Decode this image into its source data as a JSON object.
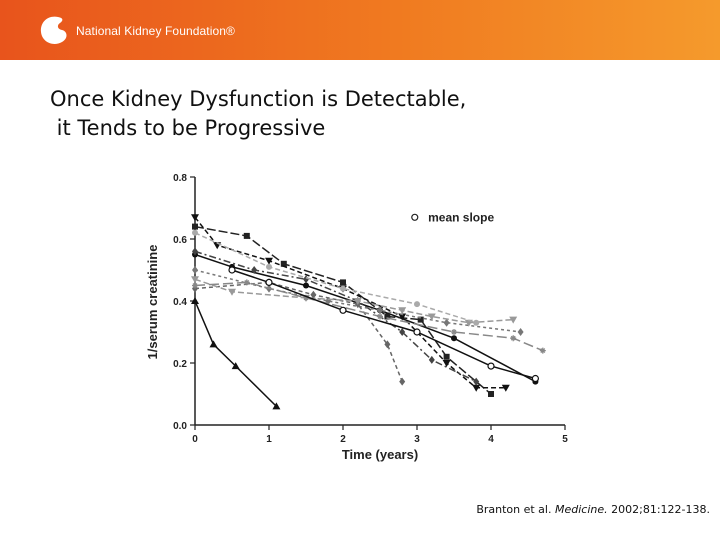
{
  "banner": {
    "color": "#f07a20",
    "logo_icon": "kidney-logo-icon",
    "logo_text": "National Kidney Foundation®"
  },
  "slide": {
    "title_line1": "Once Kidney Dysfunction is Detectable,",
    "title_line2": " it Tends to be Progressive"
  },
  "citation": {
    "authors": "Branton et al.",
    "journal": "Medicine.",
    "details": "2002;81:122-138."
  },
  "chart_data": {
    "type": "line",
    "title": "",
    "xlabel": "Time (years)",
    "ylabel": "1/serum creatinine",
    "xlim": [
      0,
      5
    ],
    "ylim": [
      0.0,
      0.8
    ],
    "xticks": [
      "0",
      "1",
      "2",
      "3",
      "4",
      "5"
    ],
    "yticks": [
      "0.0",
      "0.2",
      "0.4",
      "0.6",
      "0.8"
    ],
    "grid": false,
    "legend_position": "top-right",
    "legend": [
      {
        "marker": "open-circle",
        "label": "mean slope"
      }
    ],
    "series": [
      {
        "color": "#111111",
        "dash": "",
        "marker": "triangle",
        "points": [
          [
            0,
            0.4
          ],
          [
            0.25,
            0.26
          ],
          [
            0.55,
            0.19
          ],
          [
            1.1,
            0.06
          ]
        ]
      },
      {
        "color": "#111111",
        "dash": "",
        "marker": "circle",
        "points": [
          [
            0,
            0.55
          ],
          [
            0.5,
            0.51
          ],
          [
            1.5,
            0.45
          ],
          [
            2.5,
            0.37
          ],
          [
            3.5,
            0.28
          ],
          [
            4.6,
            0.14
          ]
        ]
      },
      {
        "color": "#222222",
        "dash": "9,3",
        "marker": "square",
        "points": [
          [
            0,
            0.64
          ],
          [
            0.7,
            0.61
          ],
          [
            1.2,
            0.52
          ],
          [
            2.0,
            0.46
          ],
          [
            2.6,
            0.35
          ],
          [
            3.05,
            0.34
          ],
          [
            3.4,
            0.22
          ],
          [
            4.0,
            0.1
          ]
        ]
      },
      {
        "color": "#111111",
        "dash": "5,3",
        "marker": "triangle-down",
        "points": [
          [
            0,
            0.67
          ],
          [
            0.3,
            0.58
          ],
          [
            1.0,
            0.53
          ],
          [
            2.0,
            0.44
          ],
          [
            2.8,
            0.35
          ],
          [
            3.4,
            0.2
          ],
          [
            3.8,
            0.12
          ],
          [
            4.2,
            0.12
          ]
        ]
      },
      {
        "color": "#444444",
        "dash": "7,3,2,3",
        "marker": "diamond",
        "points": [
          [
            0,
            0.56
          ],
          [
            0.8,
            0.5
          ],
          [
            1.5,
            0.47
          ],
          [
            2.2,
            0.4
          ],
          [
            2.8,
            0.3
          ],
          [
            3.2,
            0.21
          ],
          [
            3.8,
            0.14
          ]
        ]
      },
      {
        "color": "#777777",
        "dash": "3,3",
        "marker": "diamond",
        "points": [
          [
            0,
            0.5
          ],
          [
            1.0,
            0.44
          ],
          [
            1.8,
            0.4
          ],
          [
            2.5,
            0.37
          ],
          [
            3.4,
            0.33
          ],
          [
            4.4,
            0.3
          ]
        ]
      },
      {
        "color": "#666666",
        "dash": "4,3",
        "marker": "diamond",
        "points": [
          [
            0,
            0.44
          ],
          [
            1.0,
            0.46
          ],
          [
            1.6,
            0.42
          ],
          [
            2.2,
            0.39
          ],
          [
            2.6,
            0.26
          ],
          [
            2.8,
            0.14
          ]
        ]
      },
      {
        "color": "#999999",
        "dash": "6,3",
        "marker": "triangle-down",
        "points": [
          [
            0,
            0.47
          ],
          [
            0.5,
            0.43
          ],
          [
            1.5,
            0.41
          ],
          [
            2.2,
            0.4
          ],
          [
            2.8,
            0.37
          ],
          [
            3.2,
            0.35
          ],
          [
            3.7,
            0.33
          ],
          [
            4.3,
            0.34
          ]
        ]
      },
      {
        "color": "#888888",
        "dash": "10,4",
        "marker": "asterisk",
        "points": [
          [
            0,
            0.45
          ],
          [
            0.7,
            0.46
          ],
          [
            1.5,
            0.41
          ],
          [
            2.5,
            0.35
          ],
          [
            3.5,
            0.3
          ],
          [
            4.3,
            0.28
          ],
          [
            4.7,
            0.24
          ]
        ]
      },
      {
        "color": "#aaaaaa",
        "dash": "5,3",
        "marker": "circle",
        "points": [
          [
            0,
            0.62
          ],
          [
            1.0,
            0.51
          ],
          [
            2.0,
            0.44
          ],
          [
            3.0,
            0.39
          ],
          [
            3.8,
            0.33
          ]
        ]
      },
      {
        "color": "#111111",
        "dash": "",
        "marker": "open-circle",
        "points": [
          [
            0.5,
            0.5
          ],
          [
            1.0,
            0.46
          ],
          [
            2.0,
            0.37
          ],
          [
            3.0,
            0.3
          ],
          [
            4.0,
            0.19
          ],
          [
            4.6,
            0.15
          ]
        ]
      }
    ]
  }
}
